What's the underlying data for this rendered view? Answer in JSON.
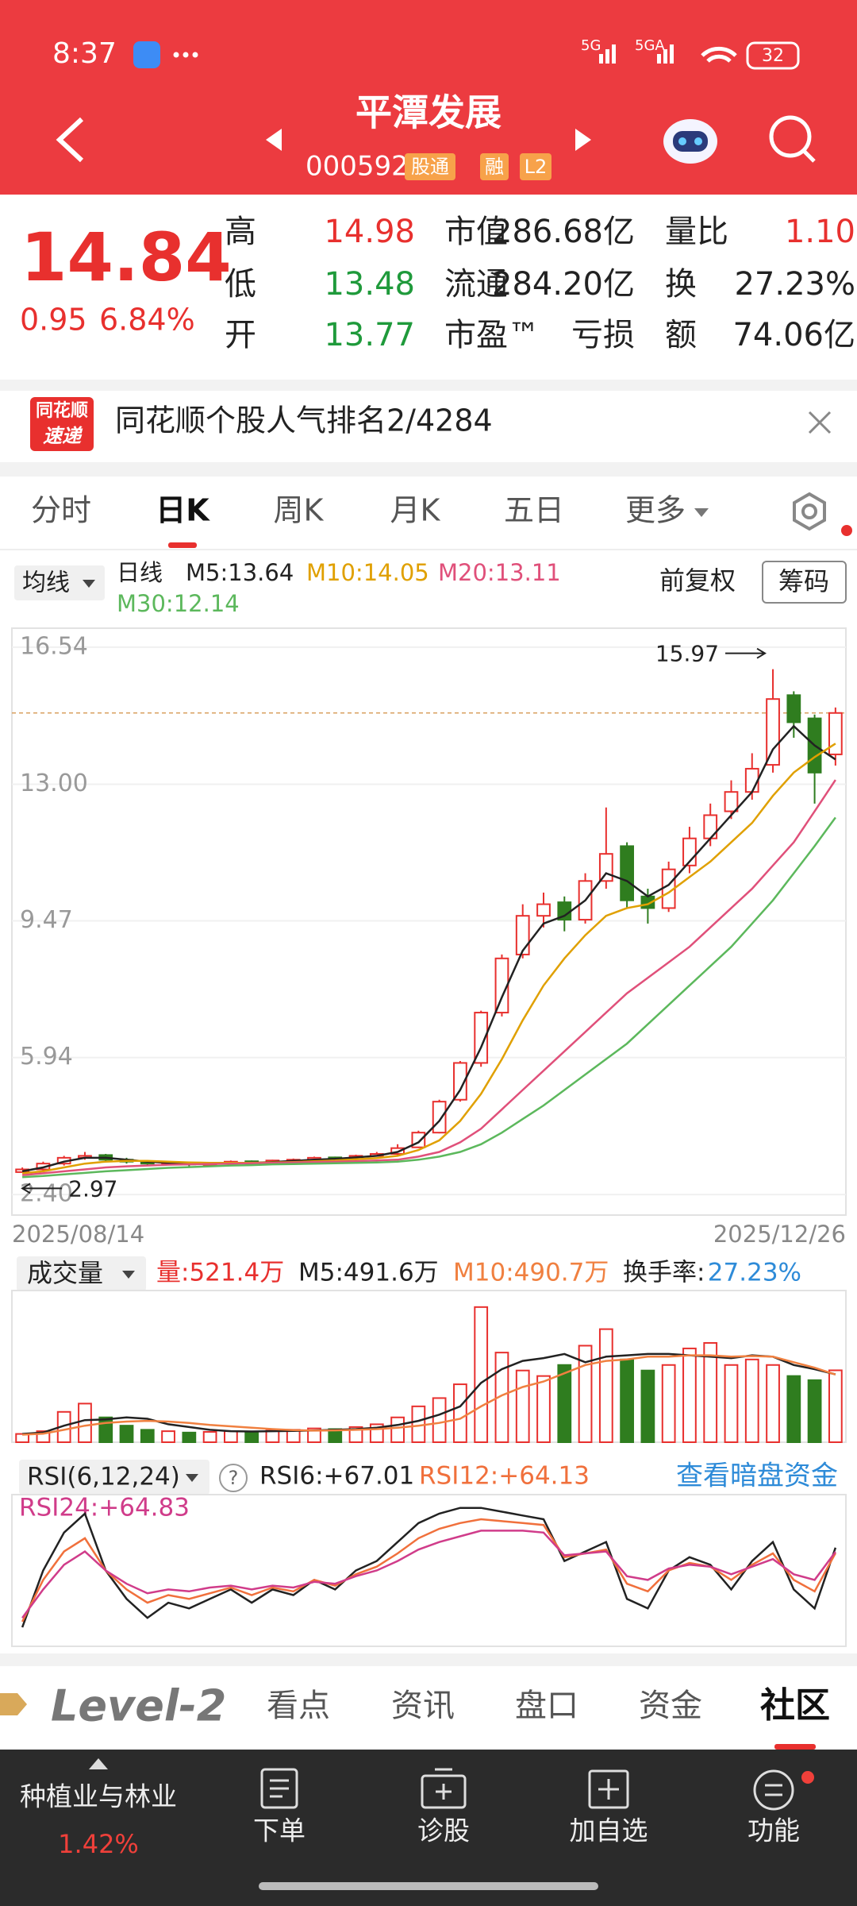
{
  "status_bar": {
    "time": "8:37",
    "network": [
      "5G",
      "5GA"
    ],
    "battery": "32"
  },
  "header": {
    "title": "平潭发展",
    "code": "000592",
    "badges": [
      "股通",
      "融",
      "L2"
    ]
  },
  "quote": {
    "price": "14.84",
    "change": "0.95",
    "change_pct": "6.84%",
    "rows": [
      [
        {
          "label": "高",
          "value": "14.98"
        },
        {
          "label": "市值",
          "value": "286.68亿"
        },
        {
          "label": "量比",
          "value": "1.10"
        }
      ],
      [
        {
          "label": "低",
          "value": "13.48"
        },
        {
          "label": "流通",
          "value": "284.20亿"
        },
        {
          "label": "换",
          "value": "27.23%"
        }
      ],
      [
        {
          "label": "开",
          "value": "13.77"
        },
        {
          "label": "市盈™",
          "value": "亏损"
        },
        {
          "label": "额",
          "value": "74.06亿"
        }
      ]
    ]
  },
  "banner": {
    "logo_top": "同花顺",
    "logo_bottom": "速递",
    "text": "同花顺个股人气排名2/4284"
  },
  "tabs": {
    "items": [
      "分时",
      "日K",
      "周K",
      "月K",
      "五日",
      "更多"
    ],
    "active": 1
  },
  "chart_header": {
    "ma_button": "均线",
    "period": "日线",
    "adjust": "前复权",
    "chips": "筹码"
  },
  "volume_header": {
    "button": "成交量",
    "current": "量:521.4万",
    "turnover_label": "换手率:",
    "turnover_value": "27.23%"
  },
  "rsi_header": {
    "button": "RSI(6,12,24)",
    "help_icon": "?",
    "link": "查看暗盘资金"
  },
  "bottom_tabs": {
    "level2": "Level-2",
    "items": [
      "看点",
      "资讯",
      "盘口",
      "资金",
      "社区"
    ],
    "active": 4
  },
  "nav": {
    "sector": "种植业与林业",
    "sector_change": "1.42%",
    "items": [
      "下单",
      "诊股",
      "加自选",
      "功能"
    ]
  },
  "chart_data": [
    {
      "type": "candlestick",
      "categories": [
        "2025/08/14",
        null,
        null,
        null,
        null,
        null,
        null,
        null,
        null,
        null,
        null,
        null,
        null,
        null,
        null,
        null,
        null,
        null,
        null,
        null,
        null,
        null,
        null,
        null,
        null,
        null,
        null,
        null,
        null,
        null,
        null,
        null,
        null,
        null,
        null,
        null,
        null,
        null,
        null,
        "2025/12/26"
      ],
      "open": [
        2.98,
        3.05,
        3.2,
        3.35,
        3.42,
        3.3,
        3.25,
        3.2,
        3.22,
        3.18,
        3.2,
        3.26,
        3.22,
        3.28,
        3.3,
        3.36,
        3.32,
        3.4,
        3.45,
        3.62,
        4.0,
        4.85,
        5.8,
        7.1,
        8.6,
        9.6,
        9.95,
        9.5,
        10.5,
        11.4,
        10.1,
        9.8,
        10.9,
        11.6,
        12.3,
        12.8,
        13.5,
        15.3,
        14.7,
        13.77
      ],
      "high": [
        3.1,
        3.25,
        3.4,
        3.5,
        3.45,
        3.35,
        3.28,
        3.26,
        3.25,
        3.23,
        3.28,
        3.28,
        3.3,
        3.33,
        3.38,
        3.38,
        3.43,
        3.5,
        3.7,
        4.05,
        4.85,
        5.85,
        7.15,
        8.6,
        9.9,
        10.2,
        10.1,
        10.7,
        12.4,
        11.5,
        10.3,
        11.0,
        11.9,
        12.5,
        13.1,
        13.8,
        15.97,
        15.4,
        14.8,
        14.98
      ],
      "low": [
        2.97,
        3.0,
        3.15,
        3.3,
        3.25,
        3.2,
        3.15,
        3.17,
        3.12,
        3.15,
        3.18,
        3.18,
        3.2,
        3.25,
        3.28,
        3.28,
        3.3,
        3.38,
        3.42,
        3.6,
        3.98,
        4.8,
        5.7,
        7.0,
        8.5,
        9.3,
        9.2,
        9.4,
        10.3,
        9.8,
        9.4,
        9.7,
        10.7,
        11.4,
        12.1,
        12.6,
        13.3,
        14.2,
        12.5,
        13.48
      ],
      "close": [
        3.05,
        3.2,
        3.35,
        3.4,
        3.3,
        3.25,
        3.2,
        3.22,
        3.18,
        3.2,
        3.25,
        3.22,
        3.28,
        3.3,
        3.35,
        3.32,
        3.4,
        3.45,
        3.6,
        4.0,
        4.8,
        5.8,
        7.1,
        8.5,
        9.6,
        9.9,
        9.5,
        10.5,
        11.2,
        10.0,
        9.8,
        10.8,
        11.6,
        12.2,
        12.8,
        13.4,
        15.2,
        14.6,
        13.3,
        14.84
      ],
      "up_color": "#e8302e",
      "down_color": "#2f7d1f",
      "series": [
        {
          "name": "M5:13.64",
          "color": "#222222",
          "values": [
            3.0,
            3.1,
            3.25,
            3.35,
            3.35,
            3.3,
            3.25,
            3.22,
            3.2,
            3.2,
            3.22,
            3.22,
            3.24,
            3.27,
            3.3,
            3.32,
            3.36,
            3.4,
            3.5,
            3.75,
            4.3,
            5.1,
            6.2,
            7.5,
            8.7,
            9.4,
            9.6,
            10.0,
            10.7,
            10.5,
            10.1,
            10.4,
            11.0,
            11.6,
            12.2,
            12.8,
            13.9,
            14.5,
            14.0,
            13.64
          ]
        },
        {
          "name": "M10:14.05",
          "color": "#e0a000",
          "values": [
            2.95,
            3.0,
            3.1,
            3.2,
            3.25,
            3.27,
            3.27,
            3.25,
            3.23,
            3.22,
            3.22,
            3.22,
            3.23,
            3.24,
            3.26,
            3.28,
            3.31,
            3.34,
            3.4,
            3.55,
            3.8,
            4.3,
            5.0,
            5.9,
            6.9,
            7.8,
            8.5,
            9.1,
            9.6,
            9.8,
            9.9,
            10.2,
            10.6,
            11.0,
            11.5,
            12.0,
            12.7,
            13.3,
            13.7,
            14.05
          ]
        },
        {
          "name": "M20:13.11",
          "color": "#e0507a",
          "values": [
            2.9,
            2.95,
            3.0,
            3.05,
            3.1,
            3.13,
            3.15,
            3.17,
            3.18,
            3.19,
            3.2,
            3.21,
            3.22,
            3.23,
            3.24,
            3.25,
            3.26,
            3.28,
            3.3,
            3.38,
            3.5,
            3.75,
            4.1,
            4.6,
            5.1,
            5.6,
            6.1,
            6.6,
            7.1,
            7.6,
            8.0,
            8.4,
            8.8,
            9.3,
            9.8,
            10.3,
            10.9,
            11.5,
            12.3,
            13.11
          ]
        },
        {
          "name": "M30:12.14",
          "color": "#5cb85c",
          "values": [
            2.85,
            2.88,
            2.92,
            2.96,
            3.0,
            3.03,
            3.06,
            3.09,
            3.11,
            3.13,
            3.15,
            3.16,
            3.18,
            3.19,
            3.2,
            3.21,
            3.22,
            3.23,
            3.25,
            3.3,
            3.38,
            3.5,
            3.7,
            4.0,
            4.35,
            4.7,
            5.1,
            5.5,
            5.9,
            6.3,
            6.8,
            7.3,
            7.8,
            8.3,
            8.8,
            9.4,
            10.0,
            10.7,
            11.4,
            12.14
          ]
        }
      ],
      "max_label": 15.97,
      "min_label": 2.97,
      "ylim": [
        1.87,
        17.03
      ],
      "yticks": [
        16.54,
        {
          "value": 13,
          "label": "13.00"
        },
        9.47,
        5.94,
        {
          "value": 2.4,
          "label": "2.40"
        }
      ],
      "grid": true
    },
    {
      "type": "bar",
      "values": [
        60,
        80,
        220,
        280,
        180,
        120,
        90,
        80,
        70,
        75,
        80,
        70,
        85,
        90,
        100,
        95,
        110,
        130,
        180,
        260,
        320,
        420,
        980,
        650,
        520,
        480,
        560,
        700,
        820,
        600,
        520,
        560,
        680,
        720,
        560,
        600,
        560,
        480,
        450,
        521.4
      ],
      "series": [
        {
          "name": "M5:491.6万",
          "color": "#222222",
          "values": [
            60,
            70,
            120,
            160,
            165,
            180,
            170,
            130,
            110,
            90,
            80,
            78,
            80,
            82,
            85,
            90,
            95,
            105,
            125,
            155,
            200,
            260,
            430,
            530,
            590,
            610,
            640,
            580,
            620,
            630,
            640,
            640,
            630,
            620,
            610,
            630,
            620,
            560,
            530,
            491.6
          ]
        },
        {
          "name": "M10:490.7万",
          "color": "#f08040",
          "values": [
            55,
            62,
            90,
            120,
            140,
            150,
            155,
            150,
            140,
            125,
            115,
            105,
            95,
            88,
            84,
            86,
            90,
            95,
            105,
            120,
            140,
            170,
            260,
            340,
            400,
            440,
            500,
            560,
            590,
            600,
            620,
            620,
            630,
            630,
            620,
            625,
            620,
            580,
            540,
            490.7
          ]
        }
      ],
      "ylim": [
        0,
        1100
      ]
    },
    {
      "type": "line",
      "series": [
        {
          "name": "RSI6:+67.01",
          "color": "#222222",
          "values": [
            25,
            55,
            75,
            85,
            55,
            40,
            30,
            38,
            35,
            40,
            45,
            38,
            45,
            42,
            50,
            45,
            55,
            60,
            70,
            80,
            85,
            88,
            88,
            86,
            84,
            82,
            60,
            65,
            70,
            40,
            35,
            55,
            62,
            58,
            45,
            60,
            70,
            45,
            35,
            67.01
          ]
        },
        {
          "name": "RSI12:+64.13",
          "color": "#f0703c",
          "values": [
            28,
            50,
            65,
            72,
            55,
            45,
            38,
            42,
            40,
            43,
            46,
            42,
            46,
            44,
            50,
            47,
            53,
            57,
            64,
            72,
            77,
            80,
            82,
            81,
            80,
            79,
            62,
            64,
            66,
            48,
            44,
            55,
            59,
            57,
            50,
            58,
            64,
            50,
            44,
            64.13
          ]
        },
        {
          "name": "RSI24:+64.83",
          "color": "#d03c8a",
          "values": [
            30,
            45,
            58,
            65,
            55,
            48,
            43,
            45,
            44,
            46,
            47,
            45,
            47,
            46,
            49,
            48,
            52,
            55,
            60,
            66,
            70,
            73,
            76,
            76,
            76,
            75,
            63,
            64,
            65,
            52,
            50,
            56,
            58,
            57,
            53,
            57,
            61,
            53,
            50,
            64.83
          ]
        }
      ],
      "ylim": [
        15,
        95
      ]
    }
  ]
}
